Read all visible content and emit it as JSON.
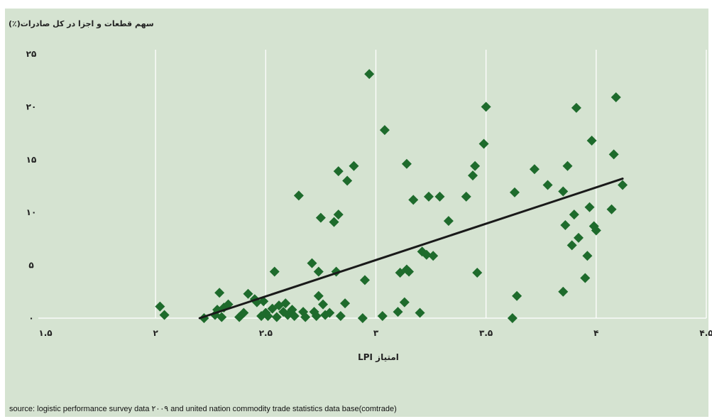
{
  "chart_data": {
    "type": "scatter",
    "title": "",
    "ylabel": "سهم قطعات و اجزا در کل صادرات(٪)",
    "xlabel": "امتیاز LPI",
    "xlim": [
      1.5,
      4.5
    ],
    "ylim": [
      0,
      25
    ],
    "x_ticks": [
      1.5,
      2,
      2.5,
      3,
      3.5,
      4,
      4.5
    ],
    "y_ticks": [
      0,
      5,
      10,
      15,
      20,
      25
    ],
    "x_tick_labels": [
      "۱.۵",
      "۲",
      "۲.۵",
      "۳",
      "۳.۵",
      "۴",
      "۴.۵"
    ],
    "y_tick_labels": [
      "۰",
      "۵",
      "۱۰",
      "۱۵",
      "۲۰",
      "۲۵"
    ],
    "grid": "vertical",
    "colors": {
      "marker": "#1e6b2c",
      "trendline": "#1a1a1a",
      "background": "#d5e3d1",
      "grid": "#ffffff"
    },
    "series": [
      {
        "points": [
          [
            2.02,
            1.1
          ],
          [
            2.04,
            0.3
          ],
          [
            2.22,
            0.0
          ],
          [
            2.27,
            0.3
          ],
          [
            2.28,
            0.8
          ],
          [
            2.29,
            2.4
          ],
          [
            2.3,
            0.1
          ],
          [
            2.31,
            1.0
          ],
          [
            2.33,
            1.3
          ],
          [
            2.38,
            0.1
          ],
          [
            2.4,
            0.5
          ],
          [
            2.42,
            2.3
          ],
          [
            2.45,
            1.8
          ],
          [
            2.46,
            1.5
          ],
          [
            2.48,
            0.2
          ],
          [
            2.49,
            1.6
          ],
          [
            2.5,
            0.5
          ],
          [
            2.51,
            0.2
          ],
          [
            2.53,
            0.9
          ],
          [
            2.54,
            4.4
          ],
          [
            2.55,
            0.1
          ],
          [
            2.56,
            1.2
          ],
          [
            2.58,
            0.6
          ],
          [
            2.59,
            1.4
          ],
          [
            2.6,
            0.3
          ],
          [
            2.62,
            0.8
          ],
          [
            2.63,
            0.2
          ],
          [
            2.65,
            11.6
          ],
          [
            2.67,
            0.6
          ],
          [
            2.68,
            0.1
          ],
          [
            2.71,
            5.2
          ],
          [
            2.72,
            0.6
          ],
          [
            2.73,
            0.2
          ],
          [
            2.74,
            2.1
          ],
          [
            2.74,
            4.4
          ],
          [
            2.75,
            9.5
          ],
          [
            2.76,
            1.3
          ],
          [
            2.77,
            0.3
          ],
          [
            2.79,
            0.5
          ],
          [
            2.81,
            9.1
          ],
          [
            2.82,
            4.4
          ],
          [
            2.83,
            9.8
          ],
          [
            2.83,
            13.9
          ],
          [
            2.84,
            0.2
          ],
          [
            2.86,
            1.4
          ],
          [
            2.87,
            13.0
          ],
          [
            2.9,
            14.4
          ],
          [
            2.94,
            0.0
          ],
          [
            2.95,
            3.6
          ],
          [
            2.97,
            23.1
          ],
          [
            3.03,
            0.2
          ],
          [
            3.04,
            17.8
          ],
          [
            3.1,
            0.6
          ],
          [
            3.11,
            4.3
          ],
          [
            3.13,
            1.5
          ],
          [
            3.14,
            4.6
          ],
          [
            3.14,
            14.6
          ],
          [
            3.15,
            4.4
          ],
          [
            3.17,
            11.2
          ],
          [
            3.2,
            0.5
          ],
          [
            3.21,
            6.3
          ],
          [
            3.23,
            6.0
          ],
          [
            3.24,
            11.5
          ],
          [
            3.26,
            5.9
          ],
          [
            3.29,
            11.5
          ],
          [
            3.33,
            9.2
          ],
          [
            3.41,
            11.5
          ],
          [
            3.44,
            13.5
          ],
          [
            3.45,
            14.4
          ],
          [
            3.46,
            4.3
          ],
          [
            3.49,
            16.5
          ],
          [
            3.5,
            20.0
          ],
          [
            3.62,
            0.0
          ],
          [
            3.63,
            11.9
          ],
          [
            3.64,
            2.1
          ],
          [
            3.72,
            14.1
          ],
          [
            3.78,
            12.6
          ],
          [
            3.85,
            2.5
          ],
          [
            3.85,
            12.0
          ],
          [
            3.86,
            8.8
          ],
          [
            3.87,
            14.4
          ],
          [
            3.89,
            6.9
          ],
          [
            3.9,
            9.8
          ],
          [
            3.91,
            19.9
          ],
          [
            3.92,
            7.6
          ],
          [
            3.95,
            3.8
          ],
          [
            3.96,
            5.9
          ],
          [
            3.97,
            10.5
          ],
          [
            3.98,
            16.8
          ],
          [
            3.99,
            8.7
          ],
          [
            4.0,
            8.3
          ],
          [
            4.07,
            10.3
          ],
          [
            4.08,
            15.5
          ],
          [
            4.09,
            20.9
          ],
          [
            4.12,
            12.6
          ]
        ]
      }
    ],
    "trendline": {
      "x": [
        2.2,
        4.12
      ],
      "y": [
        0.0,
        13.2
      ]
    }
  },
  "source_text": "source: logistic performance survey data ۲۰۰۹ and united nation commodity trade statistics data base(comtrade)"
}
